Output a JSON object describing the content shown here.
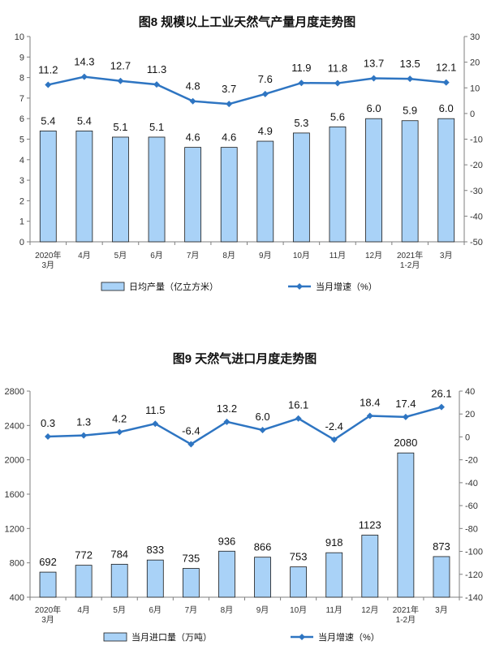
{
  "chart_data": [
    {
      "type": "bar",
      "title": "图8  规模以上工业天然气产量月度走势图",
      "categories": [
        "2020年\n3月",
        "4月",
        "5月",
        "6月",
        "7月",
        "8月",
        "9月",
        "10月",
        "11月",
        "12月",
        "2021年\n1-2月",
        "3月"
      ],
      "series": [
        {
          "name": "日均产量（亿立方米）",
          "type": "bar",
          "axis": "left",
          "values": [
            5.4,
            5.4,
            5.1,
            5.1,
            4.6,
            4.6,
            4.9,
            5.3,
            5.6,
            6.0,
            5.9,
            6.0
          ],
          "labels": [
            "5.4",
            "5.4",
            "5.1",
            "5.1",
            "4.6",
            "4.6",
            "4.9",
            "5.3",
            "5.6",
            "6.0",
            "5.9",
            "6.0"
          ]
        },
        {
          "name": "当月增速（%）",
          "type": "line",
          "axis": "right",
          "values": [
            11.2,
            14.3,
            12.7,
            11.3,
            4.8,
            3.7,
            7.6,
            11.9,
            11.8,
            13.7,
            13.5,
            12.1
          ],
          "labels": [
            "11.2",
            "14.3",
            "12.7",
            "11.3",
            "4.8",
            "3.7",
            "7.6",
            "11.9",
            "11.8",
            "13.7",
            "13.5",
            "12.1"
          ]
        }
      ],
      "ylim_left": [
        0,
        10
      ],
      "yticks_left": [
        "0",
        "1",
        "2",
        "3",
        "4",
        "5",
        "6",
        "7",
        "8",
        "9",
        "10"
      ],
      "ylim_right": [
        -50,
        30
      ],
      "yticks_right": [
        "-50",
        "-40",
        "-30",
        "-20",
        "-10",
        "0",
        "10",
        "20",
        "30"
      ],
      "legend_position": "bottom",
      "colors": {
        "bar_fill": "#a9d2f7",
        "bar_stroke": "#1a1a1a",
        "line": "#2e75c2"
      }
    },
    {
      "type": "bar",
      "title": "图9  天然气进口月度走势图",
      "categories": [
        "2020年\n3月",
        "4月",
        "5月",
        "6月",
        "7月",
        "8月",
        "9月",
        "10月",
        "11月",
        "12月",
        "2021年\n1-2月",
        "3月"
      ],
      "series": [
        {
          "name": "当月进口量（万吨）",
          "type": "bar",
          "axis": "left",
          "values": [
            692,
            772,
            784,
            833,
            735,
            936,
            866,
            753,
            918,
            1123,
            2080,
            873
          ],
          "labels": [
            "692",
            "772",
            "784",
            "833",
            "735",
            "936",
            "866",
            "753",
            "918",
            "1123",
            "2080",
            "873"
          ]
        },
        {
          "name": "当月增速（%）",
          "type": "line",
          "axis": "right",
          "values": [
            0.3,
            1.3,
            4.2,
            11.5,
            -6.4,
            13.2,
            6.0,
            16.1,
            -2.4,
            18.4,
            17.4,
            26.1
          ],
          "labels": [
            "0.3",
            "1.3",
            "4.2",
            "11.5",
            "-6.4",
            "13.2",
            "6.0",
            "16.1",
            "-2.4",
            "18.4",
            "17.4",
            "26.1"
          ]
        }
      ],
      "ylim_left": [
        400,
        2800
      ],
      "yticks_left": [
        "400",
        "800",
        "1200",
        "1600",
        "2000",
        "2400",
        "2800"
      ],
      "ylim_right": [
        -140,
        40
      ],
      "yticks_right": [
        "-140",
        "-120",
        "-100",
        "-80",
        "-60",
        "-40",
        "-20",
        "0",
        "20",
        "40"
      ],
      "legend_position": "bottom",
      "colors": {
        "bar_fill": "#a9d2f7",
        "bar_stroke": "#1a1a1a",
        "line": "#2e75c2"
      }
    }
  ]
}
